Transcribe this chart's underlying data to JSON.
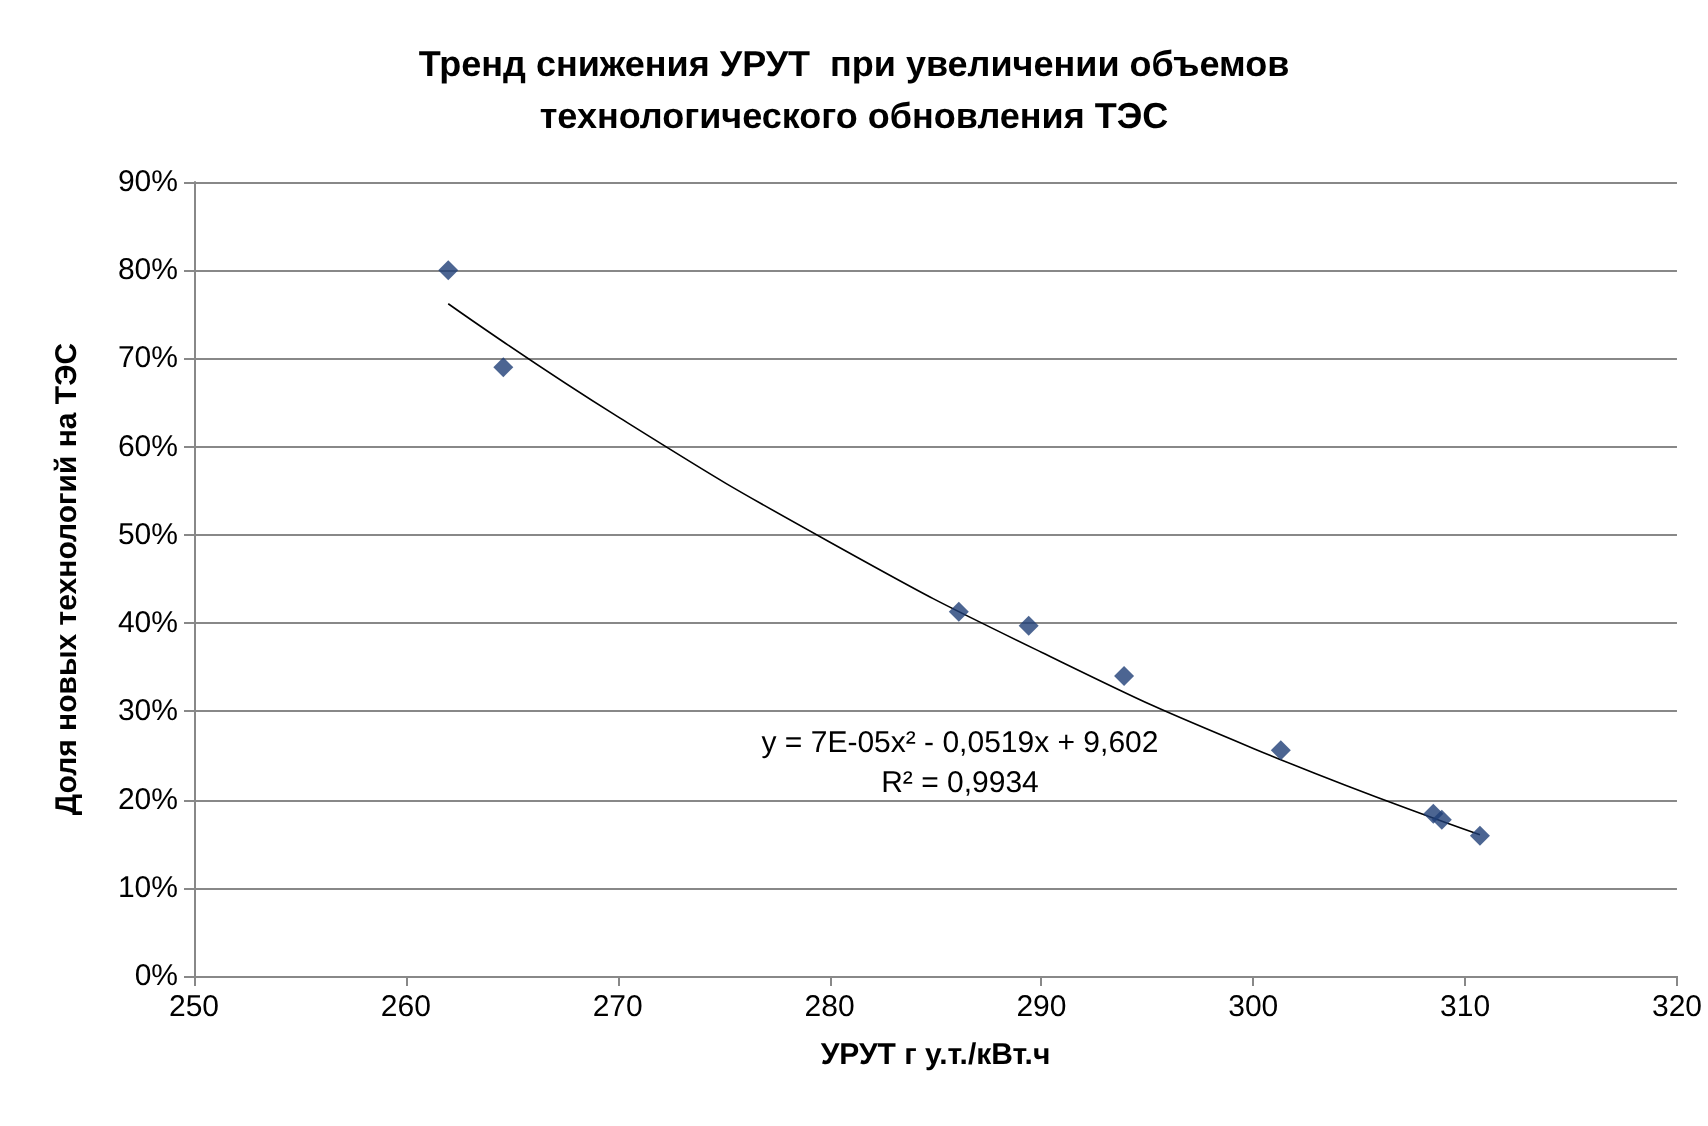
{
  "chart_data": {
    "type": "scatter",
    "title": "Тренд снижения УРУТ  при увеличении объемов\nтехнологического обновления ТЭС",
    "xlabel": "УРУТ г у.т./кВт.ч",
    "ylabel": "Доля новых технологий на ТЭС",
    "x": [
      262.0,
      264.6,
      286.1,
      289.4,
      293.9,
      301.3,
      308.5,
      308.9,
      310.7
    ],
    "series": [
      {
        "color": "#1f3f77",
        "values": [
          80,
          69,
          41.3,
          39.7,
          34.0,
          25.6,
          18.4,
          17.7,
          15.9
        ]
      },
      {
        "type": "line",
        "marker": "none",
        "color": "#000000",
        "x": [
          262,
          270,
          280,
          290,
          300,
          310.7
        ],
        "values": [
          76.2,
          63.4,
          49.2,
          36.7,
          25.8,
          16.0
        ]
      }
    ],
    "xlim": [
      250,
      320
    ],
    "xticks": [
      250,
      260,
      270,
      280,
      290,
      300,
      310,
      320
    ],
    "ylim": [
      0,
      90
    ],
    "yticks": [
      {
        "value": 0,
        "label": "0%"
      },
      {
        "value": 10,
        "label": "10%"
      },
      {
        "value": 20,
        "label": "20%"
      },
      {
        "value": 30,
        "label": "30%"
      },
      {
        "value": 40,
        "label": "40%"
      },
      {
        "value": 50,
        "label": "50%"
      },
      {
        "value": 60,
        "label": "60%"
      },
      {
        "value": 70,
        "label": "70%"
      },
      {
        "value": 80,
        "label": "80%"
      },
      {
        "value": 90,
        "label": "90%"
      }
    ],
    "annotations": [
      "y = 7E-05x² - 0,0519x + 9,602",
      "R² = 0,9934"
    ],
    "grid": "y",
    "marker": "diamond"
  }
}
